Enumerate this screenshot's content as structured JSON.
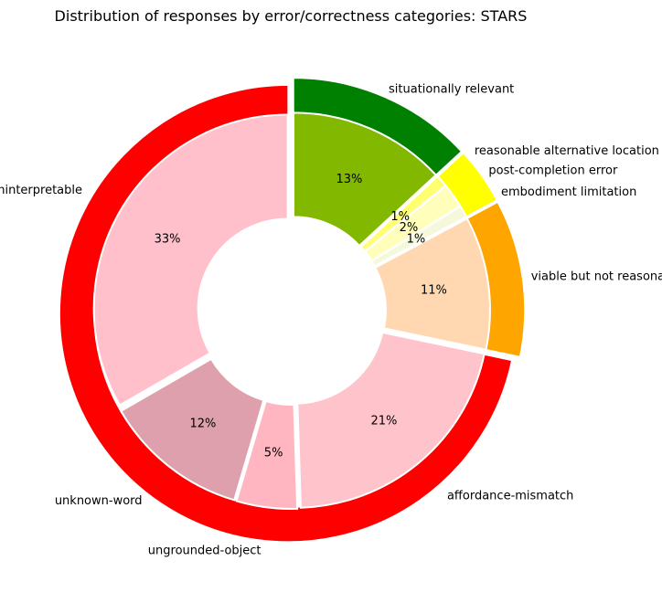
{
  "chart_data": {
    "type": "pie",
    "title": "Distribution of responses by error/correctness categories: STARS",
    "outer_ring": [
      {
        "value": 13,
        "color": "#008000"
      },
      {
        "value": 4,
        "color": "#ffff00"
      },
      {
        "value": 11,
        "color": "#ffa500"
      },
      {
        "value": 71,
        "color": "#ff0000"
      }
    ],
    "slices": [
      {
        "label": "situationally relevant",
        "value": 13,
        "pct": "13%",
        "color": "#83b800"
      },
      {
        "label": "reasonable alternative location",
        "value": 1,
        "pct": "1%",
        "color": "#ffff70"
      },
      {
        "label": "post-completion error",
        "value": 2,
        "pct": "2%",
        "color": "#ffffbb"
      },
      {
        "label": "embodiment limitation",
        "value": 1,
        "pct": "1%",
        "color": "#f6f8dc"
      },
      {
        "label": "viable but not reasonable",
        "value": 11,
        "pct": "11%",
        "color": "#ffd8b1"
      },
      {
        "label": "affordance-mismatch",
        "value": 21,
        "pct": "21%",
        "color": "#ffc4cb"
      },
      {
        "label": "ungrounded-object",
        "value": 5,
        "pct": "5%",
        "color": "#ffb6c1"
      },
      {
        "label": "unknown-word",
        "value": 12,
        "pct": "12%",
        "color": "#dea0ad"
      },
      {
        "label": "uninterpretable",
        "value": 33,
        "pct": "33%",
        "color": "#ffc0cb"
      }
    ]
  }
}
